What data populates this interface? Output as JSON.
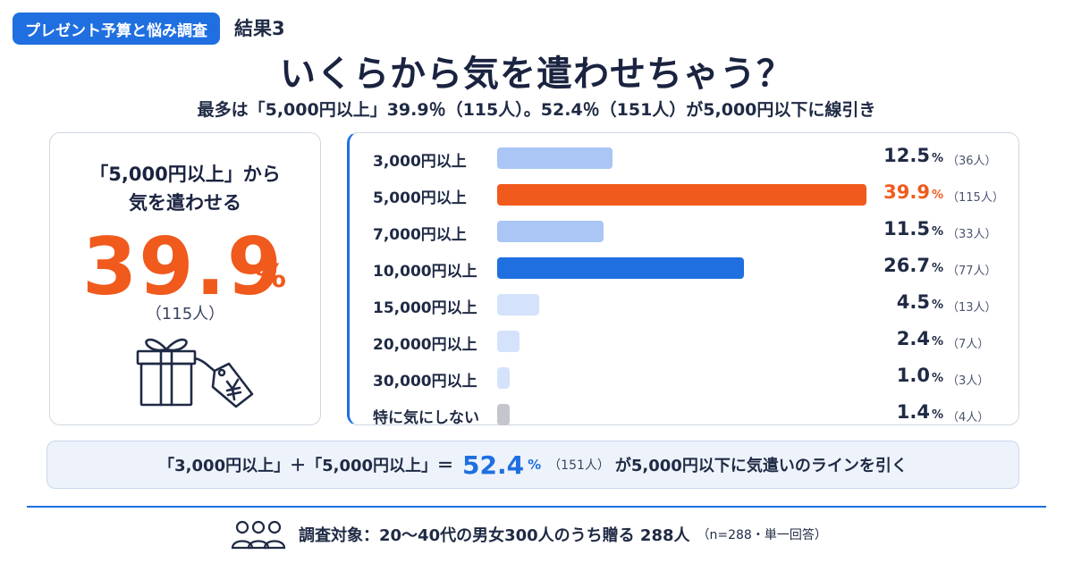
{
  "header": {
    "badge": "プレゼント予算と悩み調査",
    "result_no": "結果3",
    "headline": "いくらから気を遣わせちゃう？",
    "subline": "最多は「5,000円以上」39.9％（115人）。52.4％（151人）が5,000円以下に線引き"
  },
  "highlight": {
    "title_line1": "「5,000円以上」から",
    "title_line2": "気を遣わせる",
    "pct": "39.9",
    "unit": "%",
    "count": "（115人）",
    "icon": "gift-with-yen-tag-icon"
  },
  "chart_data": {
    "type": "bar",
    "orientation": "horizontal",
    "categories": [
      "3,000円以上",
      "5,000円以上",
      "7,000円以上",
      "10,000円以上",
      "15,000円以上",
      "20,000円以上",
      "30,000円以上",
      "特に気にしない"
    ],
    "values": [
      12.5,
      39.9,
      11.5,
      26.7,
      4.5,
      2.4,
      1.0,
      1.4
    ],
    "value_labels": [
      "12.5",
      "39.9",
      "11.5",
      "26.7",
      "4.5",
      "2.4",
      "1.0",
      "1.4"
    ],
    "unit": "%",
    "counts": [
      "（36人）",
      "（115人）",
      "（33人）",
      "（77人）",
      "（13人）",
      "（7人）",
      "（3人）",
      "（4人）"
    ],
    "colors": [
      "#a9c6f5",
      "#f05a1c",
      "#a9c6f5",
      "#1f6fe0",
      "#d4e3fb",
      "#d4e3fb",
      "#d4e3fb",
      "#c4c6cc"
    ],
    "highlight_index": 1,
    "xlim": [
      0,
      39.9
    ]
  },
  "summary": {
    "prefix": "「3,000円以上」＋「5,000円以上」＝",
    "pct": "52.4",
    "unit": "%",
    "count": "（151人）",
    "suffix": "が5,000円以下に気遣いのラインを引く"
  },
  "footer": {
    "icon": "people-group-icon",
    "text": "調査対象：20〜40代の男女300人のうち贈る 288人",
    "note": "（n=288・単一回答）"
  }
}
